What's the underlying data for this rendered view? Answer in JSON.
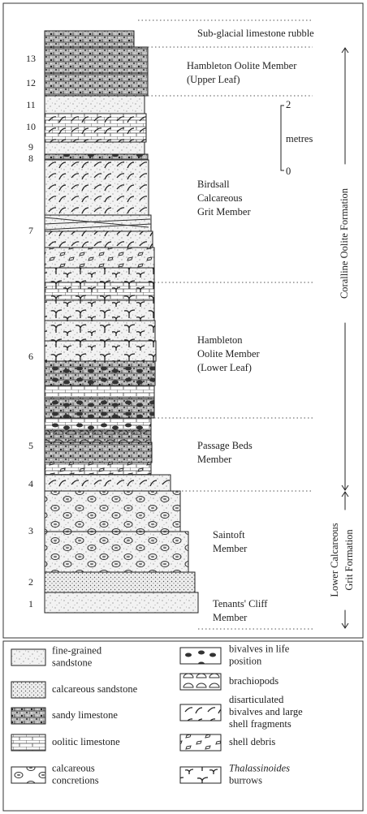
{
  "beds": [
    "1",
    "2",
    "3",
    "4",
    "5",
    "6",
    "7",
    "8",
    "9",
    "10",
    "11",
    "12",
    "13"
  ],
  "units": [
    {
      "lines": [
        "Sub-glacial limestone rubble"
      ]
    },
    {
      "lines": [
        "Hambleton Oolite Member",
        "(Upper Leaf)"
      ]
    },
    {
      "lines": [
        "Birdsall",
        "Calcareous",
        "Grit Member"
      ]
    },
    {
      "lines": [
        "Hambleton",
        "Oolite Member",
        "(Lower Leaf)"
      ]
    },
    {
      "lines": [
        "Passage Beds",
        "Member"
      ]
    },
    {
      "lines": [
        "Saintoft",
        "Member"
      ]
    },
    {
      "lines": [
        "Tenants' Cliff",
        "Member"
      ]
    }
  ],
  "scale": {
    "top": "2",
    "label": "metres",
    "bottom": "0"
  },
  "formations": [
    {
      "lines": [
        "Coralline Oolite Formation"
      ]
    },
    {
      "lines": [
        "Lower Calcareous",
        "Grit Formation"
      ]
    }
  ],
  "legend": [
    {
      "lines": [
        "fine-grained",
        "sandstone"
      ]
    },
    {
      "lines": [
        "calcareous sandstone"
      ]
    },
    {
      "lines": [
        "sandy limestone"
      ]
    },
    {
      "lines": [
        "oolitic limestone"
      ]
    },
    {
      "lines": [
        "calcareous",
        "concretions"
      ]
    },
    {
      "lines": [
        "bivalves in life",
        "position"
      ]
    },
    {
      "lines": [
        "brachiopods"
      ]
    },
    {
      "lines": [
        "disarticulated",
        "bivalves and large",
        "shell fragments"
      ]
    },
    {
      "lines": [
        "shell debris"
      ]
    },
    {
      "lines": [
        "Thalassinoides",
        "burrows"
      ]
    }
  ]
}
